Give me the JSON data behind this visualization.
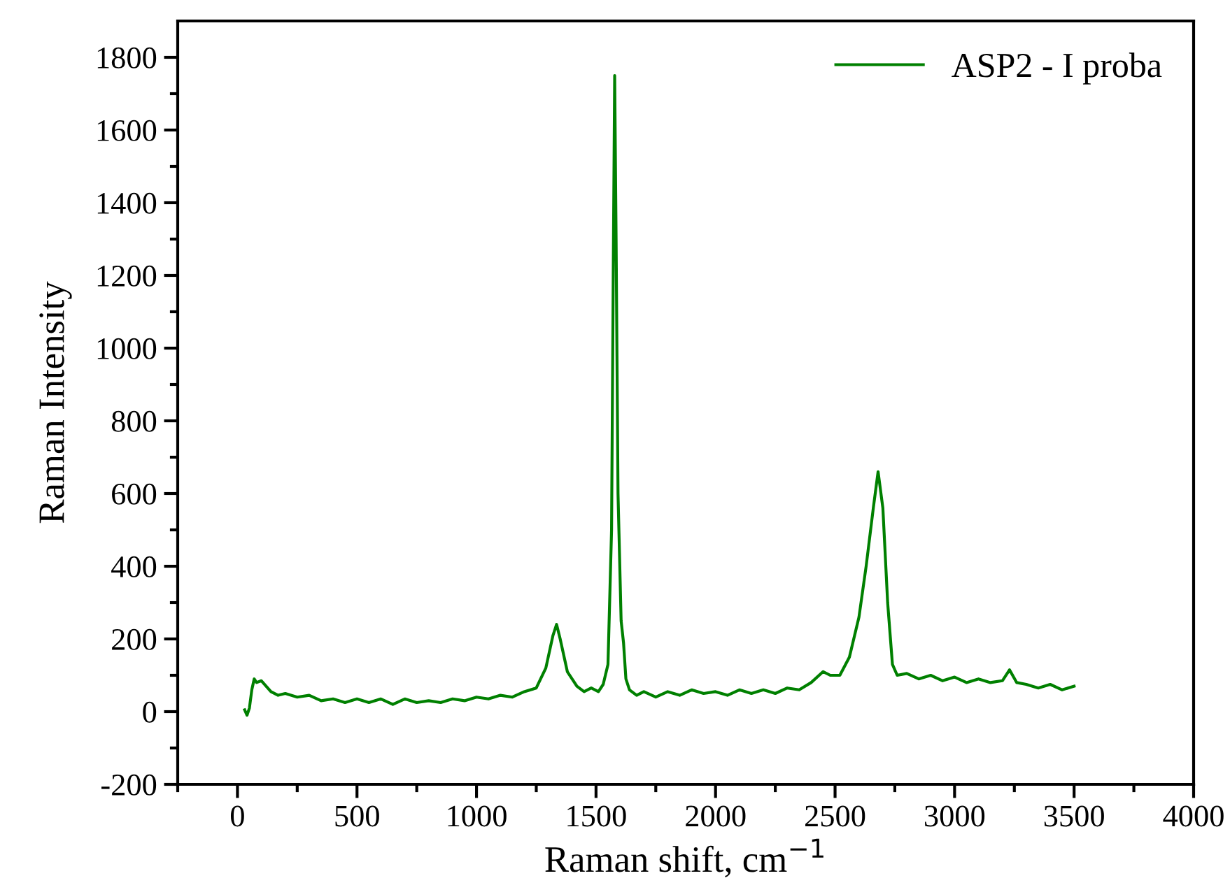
{
  "chart_data": {
    "type": "line",
    "xlabel": "Raman shift, cm$^{−1}$",
    "ylabel": "Raman Intensity",
    "series": [
      {
        "name": "ASP2 - I proba",
        "color": "#008000",
        "x": [
          30,
          40,
          50,
          60,
          70,
          80,
          100,
          120,
          140,
          170,
          200,
          250,
          300,
          350,
          400,
          450,
          500,
          550,
          600,
          650,
          700,
          750,
          800,
          850,
          900,
          950,
          1000,
          1050,
          1100,
          1150,
          1200,
          1250,
          1290,
          1320,
          1335,
          1350,
          1380,
          1420,
          1450,
          1480,
          1510,
          1530,
          1550,
          1565,
          1572,
          1578,
          1584,
          1592,
          1605,
          1615,
          1625,
          1640,
          1670,
          1700,
          1750,
          1800,
          1850,
          1900,
          1950,
          2000,
          2050,
          2100,
          2150,
          2200,
          2250,
          2300,
          2350,
          2400,
          2450,
          2480,
          2520,
          2560,
          2600,
          2630,
          2660,
          2680,
          2700,
          2720,
          2740,
          2760,
          2800,
          2850,
          2900,
          2950,
          3000,
          3050,
          3100,
          3150,
          3200,
          3230,
          3260,
          3300,
          3350,
          3400,
          3450,
          3500
        ],
        "values": [
          5,
          -10,
          10,
          60,
          90,
          80,
          85,
          70,
          55,
          45,
          50,
          40,
          45,
          30,
          35,
          25,
          35,
          25,
          35,
          20,
          35,
          25,
          30,
          25,
          35,
          30,
          40,
          35,
          45,
          40,
          55,
          65,
          120,
          210,
          240,
          200,
          110,
          70,
          55,
          65,
          55,
          75,
          130,
          500,
          1200,
          1750,
          1300,
          600,
          250,
          190,
          90,
          60,
          45,
          55,
          40,
          55,
          45,
          60,
          50,
          55,
          45,
          60,
          50,
          60,
          50,
          65,
          60,
          80,
          110,
          100,
          100,
          150,
          260,
          400,
          560,
          660,
          560,
          300,
          130,
          100,
          105,
          90,
          100,
          85,
          95,
          80,
          90,
          80,
          85,
          115,
          80,
          75,
          65,
          75,
          60,
          70
        ]
      }
    ],
    "xlim": [
      -250,
      4000
    ],
    "xticks": [
      {
        "value": -250,
        "label": null
      },
      0,
      {
        "value": 250,
        "label": null
      },
      500,
      {
        "value": 750,
        "label": null
      },
      1000,
      {
        "value": 1250,
        "label": null
      },
      1500,
      {
        "value": 1750,
        "label": null
      },
      2000,
      {
        "value": 2250,
        "label": null
      },
      2500,
      {
        "value": 2750,
        "label": null
      },
      3000,
      {
        "value": 3250,
        "label": null
      },
      3500,
      {
        "value": 3750,
        "label": null
      },
      4000
    ],
    "ylim": [
      -200,
      1900
    ],
    "yticks": [
      -200,
      {
        "value": -100,
        "label": null
      },
      0,
      {
        "value": 100,
        "label": null
      },
      200,
      {
        "value": 300,
        "label": null
      },
      400,
      {
        "value": 500,
        "label": null
      },
      600,
      {
        "value": 700,
        "label": null
      },
      800,
      {
        "value": 900,
        "label": null
      },
      1000,
      {
        "value": 1100,
        "label": null
      },
      1200,
      {
        "value": 1300,
        "label": null
      },
      1400,
      {
        "value": 1500,
        "label": null
      },
      1600,
      {
        "value": 1700,
        "label": null
      },
      1800
    ],
    "legend": "top right",
    "grid": false,
    "line_style": "solid",
    "marker": "none"
  }
}
